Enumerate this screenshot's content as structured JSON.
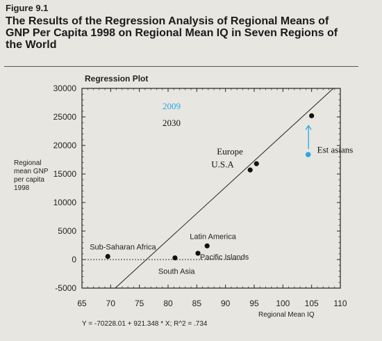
{
  "figure": {
    "label": "Figure 9.1",
    "title": "The Results of the Regression Analysis of Regional Means of GNP Per Capita 1998 on Regional Mean IQ in Seven Regions of the World"
  },
  "chart_data": {
    "type": "scatter",
    "title": "Regression Plot",
    "xlabel": "Regional Mean IQ",
    "ylabel": "Regional mean GNP per capita 1998",
    "xlim": [
      65,
      110
    ],
    "ylim": [
      -5000,
      30000
    ],
    "xticks": [
      65,
      70,
      75,
      80,
      85,
      90,
      95,
      100,
      105,
      110
    ],
    "yticks": [
      -5000,
      0,
      5000,
      10000,
      15000,
      20000,
      25000,
      30000
    ],
    "grid": false,
    "points": [
      {
        "label": "Sub-Saharan Africa",
        "x": 69.5,
        "y": 550
      },
      {
        "label": "South Asia",
        "x": 81.2,
        "y": 300
      },
      {
        "label": "Pacific Islands",
        "x": 85.2,
        "y": 1100
      },
      {
        "label": "Latin America",
        "x": 86.8,
        "y": 2400
      },
      {
        "label": "U.S.A",
        "x": 94.3,
        "y": 15700
      },
      {
        "label": "Europe",
        "x": 95.4,
        "y": 16800
      },
      {
        "label": "Est asians",
        "x": 105.0,
        "y": 25200
      }
    ],
    "highlight_point": {
      "x": 104.4,
      "y": 18400,
      "color": "#29a9e1"
    },
    "regression": {
      "intercept": -70228.01,
      "slope": 921.348,
      "equation": "Y = -70228.01 + 921.348 * X; R^2 = .734"
    },
    "annotations": {
      "year_a": "2009",
      "year_b": "2030",
      "year_a_color": "#29a9e1"
    },
    "baseline_y": 0
  }
}
